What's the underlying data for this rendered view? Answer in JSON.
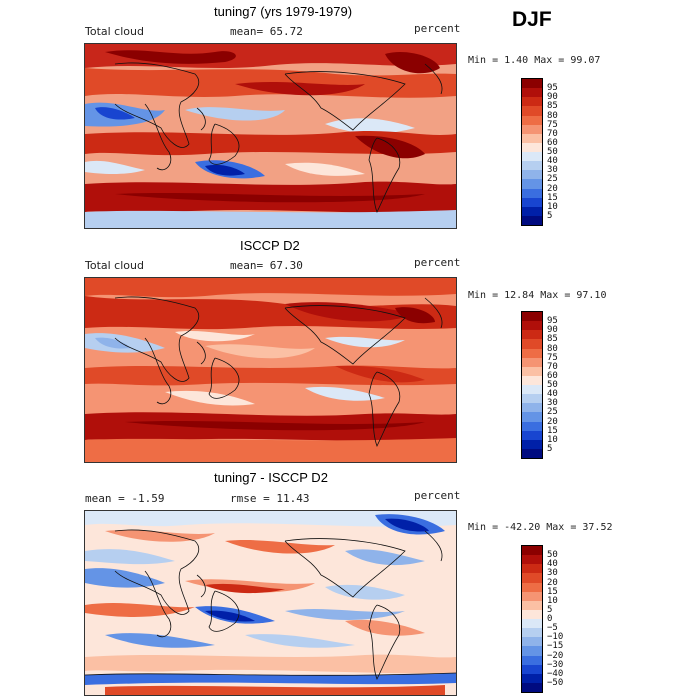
{
  "season": "DJF",
  "panels": [
    {
      "title": "tuning7 (yrs 1979-1979)",
      "left_label": "Total cloud",
      "center_label": "mean=  65.72",
      "units": "percent",
      "minmax": "Min =   1.40 Max =  99.07",
      "colorbar_labels": [
        "95",
        "90",
        "85",
        "80",
        "75",
        "70",
        "60",
        "50",
        "40",
        "30",
        "25",
        "20",
        "15",
        "10",
        "5"
      ],
      "colors": [
        "#8b0000",
        "#b00f0a",
        "#cc2a14",
        "#e04a28",
        "#ee6d45",
        "#f59473",
        "#fbc0a4",
        "#fde6da",
        "#dbe8f7",
        "#b6cff0",
        "#8fb3ea",
        "#6494e6",
        "#3a6ee0",
        "#1845d0",
        "#0020a8",
        "#000b80"
      ]
    },
    {
      "title": "ISCCP D2",
      "left_label": "Total cloud",
      "center_label": "mean=  67.30",
      "units": "percent",
      "minmax": "Min =  12.84 Max =  97.10",
      "colorbar_labels": [
        "95",
        "90",
        "85",
        "80",
        "75",
        "70",
        "60",
        "50",
        "40",
        "30",
        "25",
        "20",
        "15",
        "10",
        "5"
      ],
      "colors": [
        "#8b0000",
        "#b00f0a",
        "#cc2a14",
        "#e04a28",
        "#ee6d45",
        "#f59473",
        "#fbc0a4",
        "#fde6da",
        "#dbe8f7",
        "#b6cff0",
        "#8fb3ea",
        "#6494e6",
        "#3a6ee0",
        "#1845d0",
        "#0020a8",
        "#000b80"
      ]
    },
    {
      "title": "tuning7 - ISCCP D2",
      "left_label": "mean =   -1.59",
      "center_label": "rmse =  11.43",
      "units": "percent",
      "minmax": "Min = -42.20 Max =  37.52",
      "colorbar_labels": [
        "50",
        "40",
        "30",
        "20",
        "15",
        "10",
        "5",
        "0",
        "−5",
        "−10",
        "−15",
        "−20",
        "−30",
        "−40",
        "−50"
      ],
      "colors": [
        "#8b0000",
        "#b00f0a",
        "#cc2a14",
        "#e04a28",
        "#ee6d45",
        "#f59473",
        "#fbc0a4",
        "#fde6da",
        "#dbe8f7",
        "#b6cff0",
        "#8fb3ea",
        "#6494e6",
        "#3a6ee0",
        "#1845d0",
        "#0020a8",
        "#000b80"
      ]
    }
  ]
}
